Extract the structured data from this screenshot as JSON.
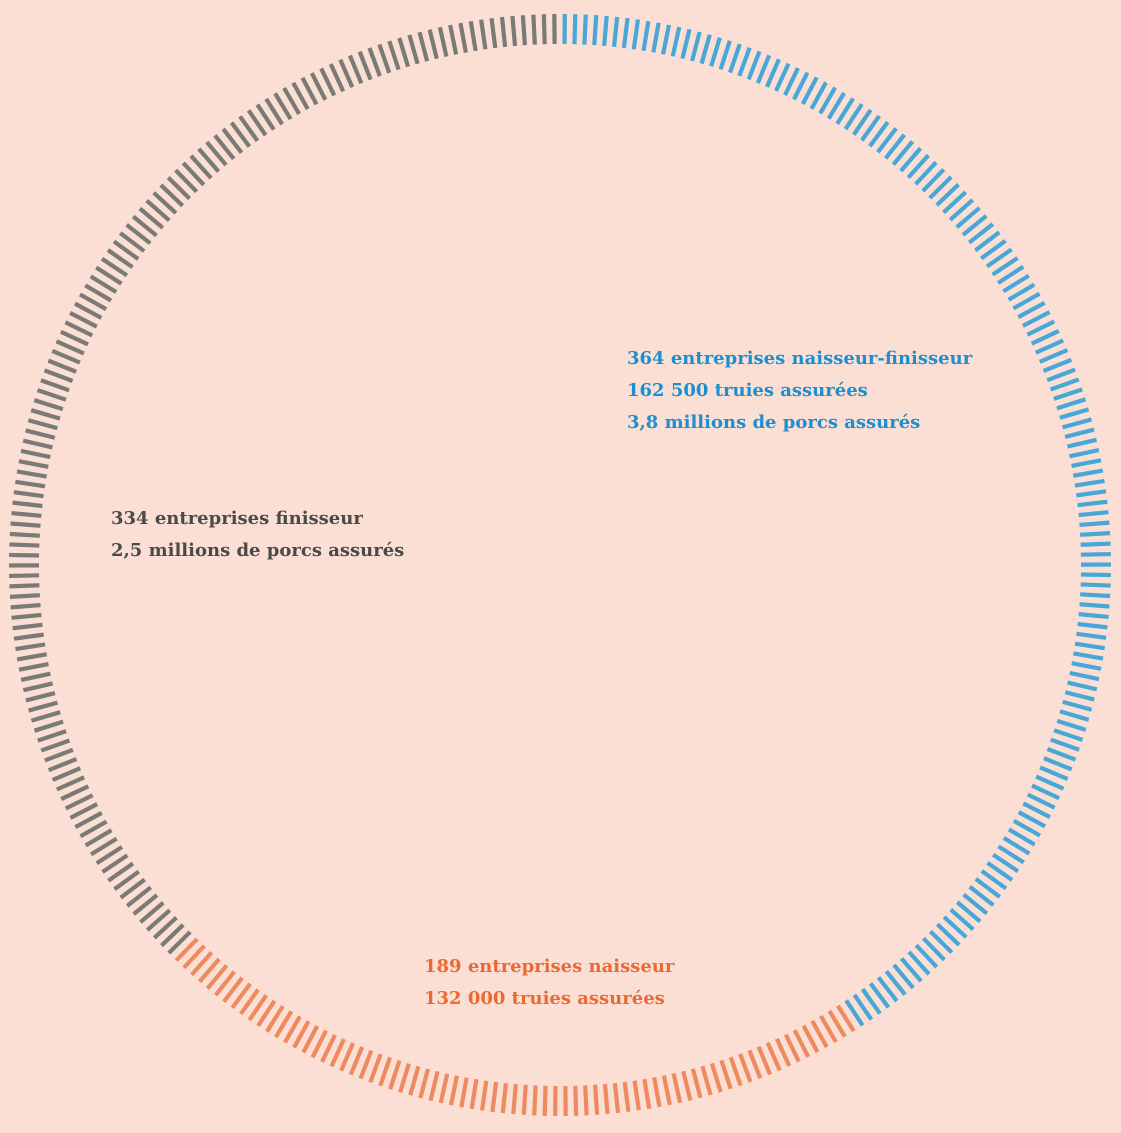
{
  "colors": {
    "background": "#fbdfd4",
    "naisseur_finisseur": "#49a7d8",
    "finisseur": "#7a7a76",
    "naisseur": "#ee8a60",
    "text_naisseur_finisseur": "#1b8fcf",
    "text_finisseur": "#4a4a48",
    "text_naisseur": "#ea6a33"
  },
  "chart_data": {
    "type": "pie",
    "style": "segmented-ring",
    "unit": "entreprises",
    "categories": [
      "naisseur-finisseur",
      "naisseur",
      "finisseur"
    ],
    "values": [
      364,
      189,
      334
    ],
    "series": [
      {
        "key": "naisseur_finisseur",
        "value": 364,
        "color": "#49a7d8",
        "lines": [
          "364 entreprises naisseur-finisseur",
          "162 500 truies assurées",
          "3,8 millions de porcs assurés"
        ]
      },
      {
        "key": "naisseur",
        "value": 189,
        "color": "#ee8a60",
        "lines": [
          "189 entreprises naisseur",
          "132 000 truies assurées"
        ]
      },
      {
        "key": "finisseur",
        "value": 334,
        "color": "#7a7a76",
        "lines": [
          "334 entreprises finisseur",
          "2,5 millions de porcs assurés"
        ]
      }
    ]
  }
}
